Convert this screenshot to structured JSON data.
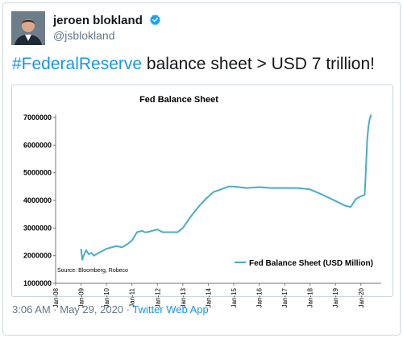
{
  "tweet": {
    "author_name": "jeroen blokland",
    "handle": "@jsblokland",
    "hashtag": "#FederalReserve",
    "text": " balance sheet > USD 7 trillion!",
    "timestamp": "3:06 AM · May 29, 2020 · ",
    "source": "Twitter Web App"
  },
  "icons": {
    "verified": "verified-badge-icon",
    "avatar": "profile-photo"
  },
  "colors": {
    "link": "#1b95e0",
    "verified": "#1da1f2",
    "series": "#4bacc6"
  },
  "chart_data": {
    "type": "line",
    "title": "Fed Balance Sheet",
    "xlabel": "",
    "ylabel": "",
    "source_note": "Source: Bloomberg, Robeco",
    "legend": "Fed Balance Sheet (USD Million)",
    "legend_position": "bottom-right",
    "grid": false,
    "ylim": [
      1000000,
      7000000
    ],
    "yticks": [
      1000000,
      2000000,
      3000000,
      4000000,
      5000000,
      6000000,
      7000000
    ],
    "ytick_labels": [
      "1000000",
      "2000000",
      "3000000",
      "4000000",
      "5000000",
      "6000000",
      "7000000"
    ],
    "xlim": [
      2008.0,
      2020.8
    ],
    "xticks": [
      2008,
      2009,
      2010,
      2011,
      2012,
      2013,
      2014,
      2015,
      2016,
      2017,
      2018,
      2019,
      2020
    ],
    "xtick_labels": [
      "Jan-08",
      "Jan-09",
      "Jan-10",
      "Jan-11",
      "Jan-12",
      "Jan-13",
      "Jan-14",
      "Jan-15",
      "Jan-16",
      "Jan-17",
      "Jan-18",
      "Jan-19",
      "Jan-20"
    ],
    "series": [
      {
        "name": "Fed Balance Sheet (USD Million)",
        "x": [
          2009.0,
          2009.05,
          2009.1,
          2009.2,
          2009.3,
          2009.4,
          2009.5,
          2009.6,
          2009.8,
          2010.0,
          2010.2,
          2010.4,
          2010.6,
          2010.8,
          2011.0,
          2011.2,
          2011.4,
          2011.5,
          2011.6,
          2011.8,
          2012.0,
          2012.2,
          2012.5,
          2012.8,
          2013.0,
          2013.3,
          2013.6,
          2013.9,
          2014.2,
          2014.5,
          2014.8,
          2015.0,
          2015.5,
          2016.0,
          2016.5,
          2017.0,
          2017.5,
          2018.0,
          2018.5,
          2019.0,
          2019.4,
          2019.6,
          2019.7,
          2019.8,
          2019.9,
          2020.0,
          2020.1,
          2020.15,
          2020.2,
          2020.25,
          2020.3,
          2020.35,
          2020.4
        ],
        "values": [
          2250000,
          1850000,
          2000000,
          2200000,
          2050000,
          2100000,
          2000000,
          2050000,
          2150000,
          2250000,
          2300000,
          2350000,
          2300000,
          2400000,
          2550000,
          2850000,
          2900000,
          2850000,
          2850000,
          2900000,
          2950000,
          2850000,
          2850000,
          2850000,
          3000000,
          3400000,
          3750000,
          4050000,
          4300000,
          4400000,
          4500000,
          4500000,
          4450000,
          4480000,
          4450000,
          4450000,
          4450000,
          4400000,
          4200000,
          3980000,
          3800000,
          3760000,
          3900000,
          4050000,
          4100000,
          4150000,
          4180000,
          4200000,
          5200000,
          6200000,
          6700000,
          6950000,
          7100000
        ]
      }
    ]
  }
}
